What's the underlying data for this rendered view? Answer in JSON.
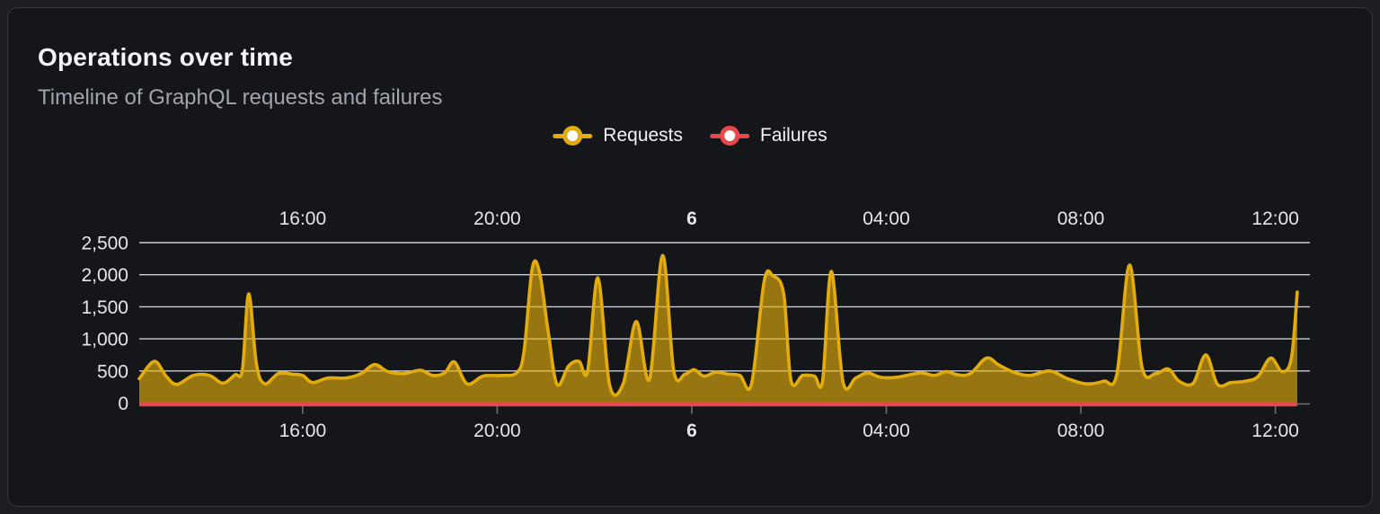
{
  "card": {
    "name": "Operations over time panel"
  },
  "chart_data": {
    "type": "area",
    "title": "Operations over time",
    "subtitle": "Timeline of GraphQL requests and failures",
    "legend": [
      {
        "label": "Requests",
        "color": "#e3ac0e"
      },
      {
        "label": "Failures",
        "color": "#e8484c"
      }
    ],
    "colors": {
      "gridline": "#d9dde6",
      "zero_axis": "#6e7079",
      "tick": "#6e7079",
      "requests_line": "#e3ac0e",
      "requests_fill": "rgba(233,177,14,0.62)",
      "failures_line": "#e8484c",
      "axis_label": "#e4e6eb"
    },
    "x_axis": {
      "type": "time",
      "note": "hours relative to midnight of day 6; same labels rendered above and below plot",
      "range_hours": [
        -11.36,
        12.71
      ],
      "labels": [
        {
          "text": "16:00",
          "h": -8,
          "bold": false
        },
        {
          "text": "20:00",
          "h": -4,
          "bold": false
        },
        {
          "text": "6",
          "h": 0,
          "bold": true
        },
        {
          "text": "04:00",
          "h": 4,
          "bold": false
        },
        {
          "text": "08:00",
          "h": 8,
          "bold": false
        },
        {
          "text": "12:00",
          "h": 12,
          "bold": false
        }
      ]
    },
    "y_axis": {
      "min": 0,
      "max": 2500,
      "tick_interval": 500,
      "tick_values": [
        0,
        500,
        1000,
        1500,
        2000,
        2500
      ],
      "tick_labels": [
        "0",
        "500",
        "1,000",
        "1,500",
        "2,000",
        "2,500"
      ]
    },
    "series": [
      {
        "name": "Requests",
        "points": [
          [
            -11.36,
            380
          ],
          [
            -11.05,
            650
          ],
          [
            -10.81,
            420
          ],
          [
            -10.59,
            290
          ],
          [
            -10.25,
            430
          ],
          [
            -9.92,
            430
          ],
          [
            -9.64,
            310
          ],
          [
            -9.39,
            440
          ],
          [
            -9.24,
            520
          ],
          [
            -9.11,
            1700
          ],
          [
            -8.95,
            600
          ],
          [
            -8.78,
            300
          ],
          [
            -8.5,
            460
          ],
          [
            -8.22,
            450
          ],
          [
            -8.0,
            430
          ],
          [
            -7.8,
            320
          ],
          [
            -7.48,
            390
          ],
          [
            -7.11,
            390
          ],
          [
            -6.8,
            460
          ],
          [
            -6.52,
            600
          ],
          [
            -6.25,
            490
          ],
          [
            -5.91,
            460
          ],
          [
            -5.58,
            510
          ],
          [
            -5.32,
            430
          ],
          [
            -5.08,
            470
          ],
          [
            -4.88,
            640
          ],
          [
            -4.62,
            300
          ],
          [
            -4.29,
            420
          ],
          [
            -3.92,
            430
          ],
          [
            -3.6,
            470
          ],
          [
            -3.45,
            800
          ],
          [
            -3.28,
            2100
          ],
          [
            -3.13,
            2040
          ],
          [
            -2.95,
            1100
          ],
          [
            -2.77,
            290
          ],
          [
            -2.53,
            580
          ],
          [
            -2.32,
            650
          ],
          [
            -2.14,
            500
          ],
          [
            -1.93,
            1950
          ],
          [
            -1.69,
            280
          ],
          [
            -1.41,
            300
          ],
          [
            -1.14,
            1270
          ],
          [
            -0.87,
            370
          ],
          [
            -0.6,
            2300
          ],
          [
            -0.37,
            500
          ],
          [
            -0.14,
            450
          ],
          [
            0.05,
            520
          ],
          [
            0.25,
            420
          ],
          [
            0.49,
            480
          ],
          [
            0.75,
            450
          ],
          [
            0.99,
            430
          ],
          [
            1.23,
            300
          ],
          [
            1.49,
            1900
          ],
          [
            1.67,
            1980
          ],
          [
            1.89,
            1700
          ],
          [
            2.04,
            350
          ],
          [
            2.28,
            430
          ],
          [
            2.52,
            420
          ],
          [
            2.69,
            350
          ],
          [
            2.87,
            2050
          ],
          [
            3.11,
            330
          ],
          [
            3.37,
            390
          ],
          [
            3.61,
            470
          ],
          [
            3.88,
            400
          ],
          [
            4.2,
            400
          ],
          [
            4.47,
            440
          ],
          [
            4.73,
            470
          ],
          [
            4.99,
            430
          ],
          [
            5.23,
            490
          ],
          [
            5.47,
            440
          ],
          [
            5.73,
            460
          ],
          [
            6.06,
            700
          ],
          [
            6.32,
            590
          ],
          [
            6.62,
            480
          ],
          [
            6.95,
            430
          ],
          [
            7.36,
            500
          ],
          [
            7.73,
            380
          ],
          [
            8.1,
            300
          ],
          [
            8.47,
            340
          ],
          [
            8.74,
            450
          ],
          [
            9.0,
            2150
          ],
          [
            9.26,
            550
          ],
          [
            9.54,
            460
          ],
          [
            9.8,
            530
          ],
          [
            10.02,
            340
          ],
          [
            10.31,
            310
          ],
          [
            10.57,
            750
          ],
          [
            10.81,
            290
          ],
          [
            11.09,
            320
          ],
          [
            11.38,
            340
          ],
          [
            11.64,
            410
          ],
          [
            11.9,
            700
          ],
          [
            12.14,
            490
          ],
          [
            12.33,
            700
          ],
          [
            12.45,
            1730
          ]
        ]
      },
      {
        "name": "Failures",
        "points": [
          [
            -11.36,
            0
          ],
          [
            12.45,
            0
          ]
        ]
      }
    ]
  }
}
